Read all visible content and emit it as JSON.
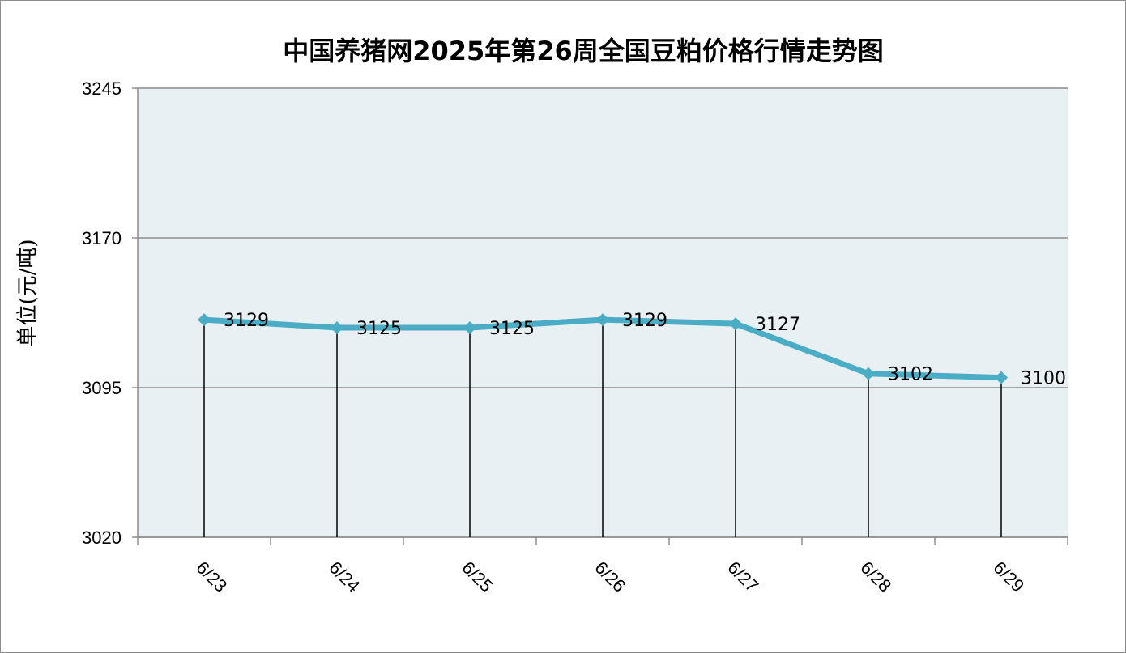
{
  "chart_data": {
    "type": "line",
    "title": "中国养猪网2025年第26周全国豆粕价格行情走势图",
    "ylabel": "单位(元/吨)",
    "xlabel": "",
    "categories": [
      "6/23",
      "6/24",
      "6/25",
      "6/26",
      "6/27",
      "6/28",
      "6/29"
    ],
    "series": [
      {
        "values": [
          3129,
          3125,
          3125,
          3129,
          3127,
          3102,
          3100
        ]
      }
    ],
    "data_labels": [
      "3129",
      "3125",
      "3125",
      "3129",
      "3127",
      "3102",
      "3100"
    ],
    "ylim": [
      3020,
      3245
    ],
    "yticks": [
      3020,
      3095,
      3170,
      3245
    ],
    "ytick_labels": [
      "3020",
      "3095",
      "3170",
      "3245"
    ],
    "grid": true,
    "drop_lines": true,
    "colors": {
      "line": "#4bacc6",
      "plot_background": "#e9f0f4",
      "gridline": "#8c8c8c",
      "drop_line": "#000000"
    }
  }
}
